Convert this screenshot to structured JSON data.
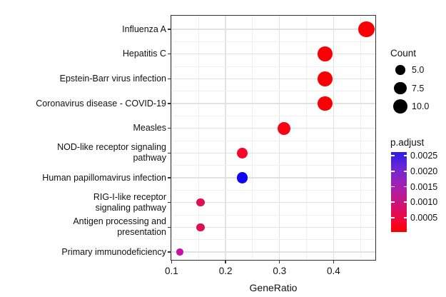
{
  "chart_data": {
    "type": "scatter",
    "subtype": "enrichment-dotplot",
    "title": "",
    "xlabel": "GeneRatio",
    "ylabel": "",
    "xlim": [
      0.0981,
      0.4788
    ],
    "x_major_ticks": [
      0.1,
      0.2,
      0.3,
      0.4
    ],
    "x_major_tick_labels": [
      "0.1",
      "0.2",
      "0.3",
      "0.4"
    ],
    "x_minor_gridlines": [
      0.15,
      0.25,
      0.35,
      0.45
    ],
    "grid": true,
    "rows": [
      {
        "label": "Influenza A",
        "gene_ratio": 0.4615,
        "count": 12,
        "color": "#f90005",
        "p_adjust_approx": 0.0002
      },
      {
        "label": "Hepatitis C",
        "gene_ratio": 0.3846,
        "count": 10,
        "color": "#f90005",
        "p_adjust_approx": 0.0002
      },
      {
        "label": "Epstein-Barr virus infection",
        "gene_ratio": 0.3846,
        "count": 10,
        "color": "#f90005",
        "p_adjust_approx": 0.0002
      },
      {
        "label": "Coronavirus disease - COVID-19",
        "gene_ratio": 0.3846,
        "count": 10,
        "color": "#f90005",
        "p_adjust_approx": 0.0002
      },
      {
        "label": "Measles",
        "gene_ratio": 0.3077,
        "count": 8,
        "color": "#fa0313",
        "p_adjust_approx": 0.0003
      },
      {
        "label": "NOD-like receptor signaling\npathway",
        "gene_ratio": 0.2308,
        "count": 6,
        "color": "#f7052b",
        "p_adjust_approx": 0.0004
      },
      {
        "label": "Human papillomavirus infection",
        "gene_ratio": 0.2308,
        "count": 6,
        "color": "#1205f0",
        "p_adjust_approx": 0.0025
      },
      {
        "label": "RIG-I-like receptor\nsignaling pathway",
        "gene_ratio": 0.1538,
        "count": 4,
        "color": "#e20e52",
        "p_adjust_approx": 0.0008
      },
      {
        "label": "Antigen processing and\npresentation",
        "gene_ratio": 0.1538,
        "count": 4,
        "color": "#e20e52",
        "p_adjust_approx": 0.0008
      },
      {
        "label": "Primary immunodeficiency",
        "gene_ratio": 0.1154,
        "count": 3,
        "color": "#c312a5",
        "p_adjust_approx": 0.0014
      }
    ],
    "legends": {
      "count": {
        "title": "Count",
        "entries": [
          {
            "label": "5.0",
            "value": 5.0
          },
          {
            "label": "7.5",
            "value": 7.5
          },
          {
            "label": "10.0",
            "value": 10.0
          }
        ],
        "symbol_color": "#000000"
      },
      "p_adjust": {
        "title": "p.adjust",
        "tick_labels": [
          "0.0025",
          "0.0020",
          "0.0015",
          "0.0010",
          "0.0005"
        ],
        "gradient_top_color": "#2b1de8",
        "gradient_mid_color": "#a81fac",
        "gradient_bottom_color": "#fd0000",
        "orientation": "vertical",
        "high_value_color": "blue",
        "low_value_color": "red"
      }
    }
  }
}
